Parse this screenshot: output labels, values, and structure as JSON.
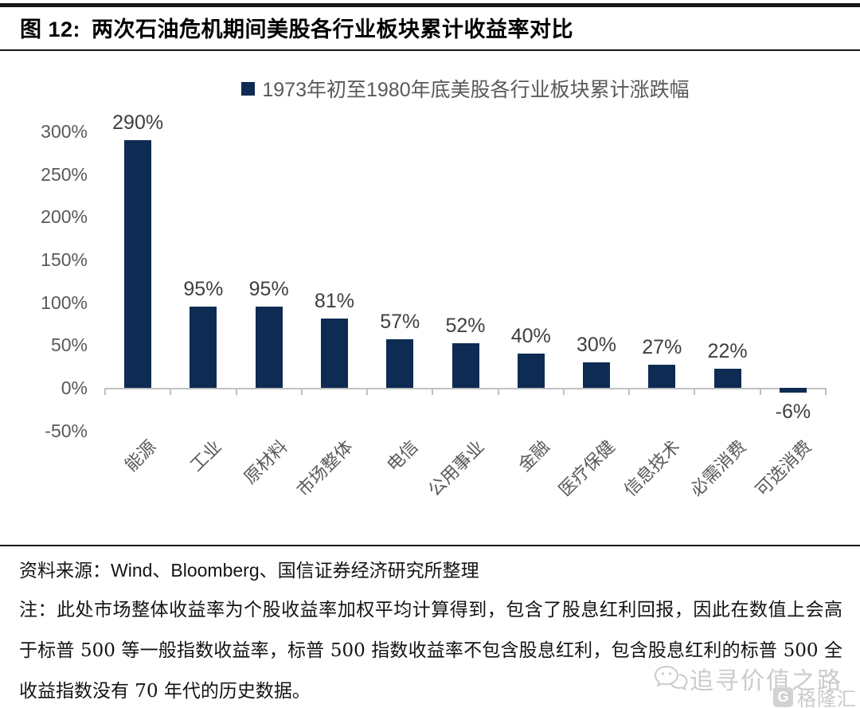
{
  "figure": {
    "caption_label": "图 12:",
    "caption_title": "两次石油危机期间美股各行业板块累计收益率对比"
  },
  "chart_data": {
    "type": "bar",
    "title": "两次石油危机期间美股各行业板块累计收益率对比",
    "legend": [
      "1973年初至1980年底美股各行业板块累计涨跌幅"
    ],
    "legend_position": "top",
    "categories": [
      "能源",
      "工业",
      "原材料",
      "市场整体",
      "电信",
      "公用事业",
      "金融",
      "医疗保健",
      "信息技术",
      "必需消费",
      "可选消费"
    ],
    "values": [
      290,
      95,
      95,
      81,
      57,
      52,
      40,
      30,
      27,
      22,
      -6
    ],
    "data_labels": [
      "290%",
      "95%",
      "95%",
      "81%",
      "57%",
      "52%",
      "40%",
      "30%",
      "27%",
      "22%",
      "-6%"
    ],
    "ylim": [
      -50,
      300
    ],
    "yticks": [
      300,
      250,
      200,
      150,
      100,
      50,
      0,
      -50
    ],
    "ytick_labels": [
      "300%",
      "250%",
      "200%",
      "150%",
      "100%",
      "50%",
      "0%",
      "-50%"
    ],
    "grid": false,
    "bar_color": "#0e2b53",
    "axis_color": "#c0c0c0"
  },
  "source": {
    "text": "资料来源：Wind、Bloomberg、国信证券经济研究所整理"
  },
  "note": {
    "text": "注：此处市场整体收益率为个股收益率加权平均计算得到，包含了股息红利回报，因此在数值上会高于标普 500 等一般指数收益率，标普 500 指数收益率不包含股息红利，包含股息红利的标普 500 全收益指数没有 70 年代的历史数据。"
  },
  "watermark": {
    "wechat_text": "追寻价值之路",
    "logo_mark": "G",
    "logo_text": "格隆汇"
  }
}
